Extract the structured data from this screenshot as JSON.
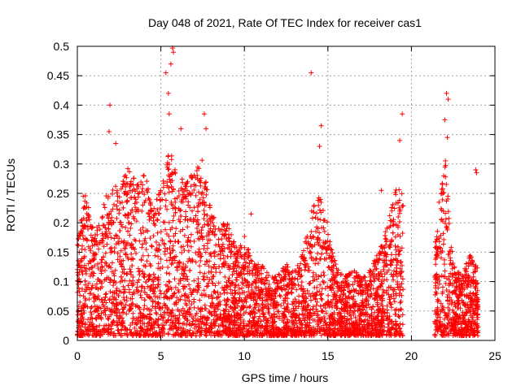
{
  "chart_data": {
    "type": "scatter",
    "title": "Day 048 of 2021, Rate Of TEC Index for receiver cas1",
    "xlabel": "GPS time / hours",
    "ylabel": "ROTI / TECUs",
    "xlim": [
      0,
      25
    ],
    "ylim": [
      0,
      0.5
    ],
    "xticks": [
      "0",
      "5",
      "10",
      "15",
      "20",
      "25"
    ],
    "yticks": [
      "0",
      "0.05",
      "0.1",
      "0.15",
      "0.2",
      "0.25",
      "0.3",
      "0.35",
      "0.4",
      "0.45",
      "0.5"
    ],
    "grid": true,
    "marker": "+",
    "series_color": "#ff0000",
    "coverage": [
      [
        0.0,
        19.5
      ],
      [
        21.4,
        24.0
      ]
    ],
    "envelope": [
      {
        "x": 0.0,
        "y": 0.17
      },
      {
        "x": 0.5,
        "y": 0.25
      },
      {
        "x": 1.0,
        "y": 0.18
      },
      {
        "x": 1.5,
        "y": 0.22
      },
      {
        "x": 2.0,
        "y": 0.28
      },
      {
        "x": 2.5,
        "y": 0.25
      },
      {
        "x": 3.0,
        "y": 0.3
      },
      {
        "x": 3.5,
        "y": 0.28
      },
      {
        "x": 4.0,
        "y": 0.3
      },
      {
        "x": 4.5,
        "y": 0.22
      },
      {
        "x": 5.0,
        "y": 0.26
      },
      {
        "x": 5.5,
        "y": 0.34
      },
      {
        "x": 6.0,
        "y": 0.28
      },
      {
        "x": 6.5,
        "y": 0.27
      },
      {
        "x": 7.0,
        "y": 0.29
      },
      {
        "x": 7.5,
        "y": 0.31
      },
      {
        "x": 8.0,
        "y": 0.22
      },
      {
        "x": 8.5,
        "y": 0.2
      },
      {
        "x": 9.0,
        "y": 0.2
      },
      {
        "x": 9.5,
        "y": 0.16
      },
      {
        "x": 10.0,
        "y": 0.18
      },
      {
        "x": 10.5,
        "y": 0.13
      },
      {
        "x": 11.0,
        "y": 0.13
      },
      {
        "x": 11.5,
        "y": 0.11
      },
      {
        "x": 12.0,
        "y": 0.12
      },
      {
        "x": 12.5,
        "y": 0.13
      },
      {
        "x": 13.0,
        "y": 0.12
      },
      {
        "x": 13.5,
        "y": 0.15
      },
      {
        "x": 14.0,
        "y": 0.22
      },
      {
        "x": 14.5,
        "y": 0.26
      },
      {
        "x": 15.0,
        "y": 0.2
      },
      {
        "x": 15.5,
        "y": 0.13
      },
      {
        "x": 16.0,
        "y": 0.11
      },
      {
        "x": 16.5,
        "y": 0.12
      },
      {
        "x": 17.0,
        "y": 0.11
      },
      {
        "x": 17.5,
        "y": 0.12
      },
      {
        "x": 18.0,
        "y": 0.15
      },
      {
        "x": 18.5,
        "y": 0.19
      },
      {
        "x": 19.0,
        "y": 0.25
      },
      {
        "x": 19.4,
        "y": 0.28
      },
      {
        "x": 21.5,
        "y": 0.17
      },
      {
        "x": 22.0,
        "y": 0.32
      },
      {
        "x": 22.5,
        "y": 0.13
      },
      {
        "x": 23.0,
        "y": 0.11
      },
      {
        "x": 23.5,
        "y": 0.15
      },
      {
        "x": 24.0,
        "y": 0.12
      }
    ],
    "outliers": [
      {
        "x": 1.95,
        "y": 0.4
      },
      {
        "x": 1.9,
        "y": 0.355
      },
      {
        "x": 2.3,
        "y": 0.335
      },
      {
        "x": 5.3,
        "y": 0.455
      },
      {
        "x": 5.45,
        "y": 0.42
      },
      {
        "x": 5.6,
        "y": 0.47
      },
      {
        "x": 5.7,
        "y": 0.497
      },
      {
        "x": 5.75,
        "y": 0.49
      },
      {
        "x": 5.5,
        "y": 0.385
      },
      {
        "x": 6.2,
        "y": 0.36
      },
      {
        "x": 7.6,
        "y": 0.385
      },
      {
        "x": 7.7,
        "y": 0.36
      },
      {
        "x": 14.0,
        "y": 0.455
      },
      {
        "x": 14.6,
        "y": 0.365
      },
      {
        "x": 14.5,
        "y": 0.33
      },
      {
        "x": 18.2,
        "y": 0.255
      },
      {
        "x": 19.45,
        "y": 0.385
      },
      {
        "x": 19.3,
        "y": 0.34
      },
      {
        "x": 22.1,
        "y": 0.42
      },
      {
        "x": 22.2,
        "y": 0.41
      },
      {
        "x": 22.0,
        "y": 0.375
      },
      {
        "x": 22.15,
        "y": 0.345
      },
      {
        "x": 23.85,
        "y": 0.29
      },
      {
        "x": 23.9,
        "y": 0.285
      },
      {
        "x": 21.65,
        "y": 0.235
      },
      {
        "x": 0.35,
        "y": 0.245
      },
      {
        "x": 10.4,
        "y": 0.215
      }
    ]
  }
}
